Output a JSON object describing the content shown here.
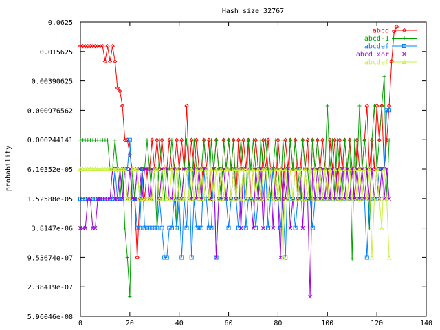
{
  "chart_data": {
    "type": "line",
    "title": "Hash size 32767",
    "xlabel": "",
    "ylabel": "probability",
    "y_scale": "log2",
    "xlim": [
      0,
      140
    ],
    "ylim": [
      5.96046e-08,
      0.0625
    ],
    "x_ticks": [
      0,
      20,
      40,
      60,
      80,
      100,
      120,
      140
    ],
    "y_tick_labels": [
      "0.0625",
      "0.015625",
      "0.00390625",
      "0.000976562",
      "0.000244141",
      "6.10352e-05",
      "1.52588e-05",
      "3.8147e-06",
      "9.53674e-07",
      "2.38419e-07",
      "5.96046e-08"
    ],
    "grid": false,
    "legend_position": "top-right",
    "series": [
      {
        "name": "abcd",
        "color": "#ff0000",
        "marker": "diamond",
        "x_start": 0,
        "x_step": 1,
        "values": [
          0.02,
          0.02,
          0.02,
          0.02,
          0.02,
          0.02,
          0.02,
          0.02,
          0.02,
          0.02,
          0.0098,
          0.02,
          0.0098,
          0.02,
          0.0098,
          0.0028,
          0.0024,
          0.0012,
          0.00024,
          0.00024,
          0.00012,
          6.1e-05,
          1.5e-05,
          9.5e-07,
          1.5e-05,
          6.1e-05,
          1.5e-05,
          6.1e-05,
          6.1e-05,
          0.00024,
          6.1e-05,
          0.00024,
          6.1e-05,
          0.00024,
          6.1e-05,
          6.1e-05,
          0.00024,
          6.1e-05,
          6.1e-05,
          0.00024,
          6.1e-05,
          0.00024,
          6.1e-05,
          0.0012,
          6.1e-05,
          0.00024,
          6.1e-05,
          0.00024,
          6.1e-05,
          1.5e-05,
          0.00024,
          6.1e-05,
          0.00024,
          1.5e-05,
          6.1e-05,
          0.00024,
          6.1e-05,
          1.5e-05,
          0.00024,
          6.1e-05,
          0.00024,
          6.1e-05,
          0.00024,
          1.5e-05,
          0.00024,
          6.1e-05,
          0.00024,
          6.1e-05,
          0.00024,
          1.5e-05,
          6.1e-05,
          0.00024,
          6.1e-05,
          1.5e-05,
          0.00024,
          6.1e-05,
          0.00024,
          6.1e-05,
          6.1e-05,
          1.5e-05,
          0.00024,
          6.1e-05,
          1.5e-05,
          0.00024,
          6.1e-05,
          0.00024,
          6.1e-05,
          0.00024,
          1.5e-05,
          6.1e-05,
          0.00024,
          6.1e-05,
          0.00024,
          1.5e-05,
          0.00024,
          6.1e-05,
          0.00024,
          6.1e-05,
          0.00024,
          6.1e-05,
          1.5e-05,
          0.00024,
          6.1e-05,
          0.00024,
          1.5e-05,
          0.00024,
          6.1e-05,
          0.00024,
          6.1e-05,
          0.00024,
          6.1e-05,
          1.5e-05,
          0.00024,
          6.1e-05,
          6.1e-05,
          0.00024,
          0.0012,
          6.1e-05,
          0.00024,
          6.1e-05,
          0.0012,
          0.00024,
          0.0012,
          6.1e-05,
          0.00024,
          0.0012,
          0.0098,
          0.04,
          0.05
        ]
      },
      {
        "name": "abcd-1",
        "color": "#00a000",
        "marker": "plus",
        "x_start": 0,
        "x_step": 1,
        "values": [
          0.00024,
          0.00024,
          0.00024,
          0.00024,
          0.00024,
          0.00024,
          0.00024,
          0.00024,
          0.00024,
          0.00024,
          0.00024,
          0.00024,
          6.1e-05,
          6.1e-05,
          0.00024,
          6.1e-05,
          1.5e-05,
          6.1e-05,
          3.8e-06,
          9.5e-07,
          1.5e-07,
          6.1e-05,
          1.5e-05,
          6.1e-05,
          1.5e-05,
          6.1e-05,
          6.1e-05,
          0.00024,
          6.1e-05,
          1.5e-05,
          6.1e-05,
          3.8e-06,
          0.00024,
          6.1e-05,
          1.5e-05,
          6.1e-05,
          6.1e-05,
          0.00024,
          6.1e-05,
          3.8e-06,
          6.1e-05,
          1.5e-05,
          6.1e-05,
          0.00024,
          6.1e-05,
          1.5e-05,
          0.00024,
          6.1e-05,
          1.5e-05,
          6.1e-05,
          0.00024,
          6.1e-05,
          1.5e-05,
          0.00024,
          6.1e-05,
          0.00024,
          6.1e-05,
          1.5e-05,
          0.00024,
          6.1e-05,
          0.00024,
          6.1e-05,
          0.00024,
          1.5e-05,
          6.1e-05,
          0.00024,
          6.1e-05,
          1.5e-05,
          0.00024,
          6.1e-05,
          0.00024,
          6.1e-05,
          1.5e-05,
          0.00024,
          6.1e-05,
          0.00024,
          6.1e-05,
          1.5e-05,
          6.1e-05,
          0.00024,
          6.1e-05,
          1.5e-05,
          0.00024,
          6.1e-05,
          1.5e-05,
          0.00024,
          6.1e-05,
          0.00024,
          6.1e-05,
          1.5e-05,
          0.00024,
          6.1e-05,
          6.1e-05,
          1.5e-05,
          0.00024,
          6.1e-05,
          0.00024,
          6.1e-05,
          1.5e-05,
          6.1e-05,
          0.0012,
          6.1e-05,
          0.00024,
          1.5e-05,
          0.00024,
          6.1e-05,
          1.5e-05,
          0.00024,
          6.1e-05,
          0.00024,
          9e-07,
          0.00024,
          6.1e-05,
          0.0012,
          6.1e-05,
          0.00024,
          6.1e-05,
          3.8e-06,
          0.00024,
          0.0012,
          6.1e-05,
          0.00024,
          0.0012,
          0.0048,
          1.5e-05,
          0.00024
        ]
      },
      {
        "name": "abcdef",
        "color": "#0080ff",
        "marker": "square",
        "x_start": 0,
        "x_step": 1,
        "values": [
          1.5e-05,
          1.5e-05,
          1.5e-05,
          1.5e-05,
          1.5e-05,
          1.5e-05,
          1.5e-05,
          1.5e-05,
          1.5e-05,
          1.5e-05,
          1.5e-05,
          1.5e-05,
          1.5e-05,
          1.5e-05,
          6.1e-05,
          1.5e-05,
          1.5e-05,
          1.5e-05,
          6.1e-05,
          6.1e-05,
          0.00024,
          1.5e-05,
          1.5e-05,
          3.8e-06,
          3.8e-06,
          6.1e-05,
          3.8e-06,
          3.8e-06,
          3.8e-06,
          3.8e-06,
          3.8e-06,
          3.8e-06,
          1.5e-05,
          3.8e-06,
          9.5e-07,
          9.5e-07,
          3.8e-06,
          3.8e-06,
          1.5e-05,
          3.8e-06,
          1.5e-05,
          9.5e-07,
          1.5e-05,
          3.8e-06,
          6.1e-05,
          9.5e-07,
          1.5e-05,
          3.8e-06,
          3.8e-06,
          3.8e-06,
          6.1e-05,
          1.5e-05,
          3.8e-06,
          3.8e-06,
          6.1e-05,
          9.5e-07,
          1.5e-05,
          6.1e-05,
          1.5e-05,
          1.5e-05,
          3.8e-06,
          1.5e-05,
          6.1e-05,
          1.5e-05,
          3.8e-06,
          1.5e-05,
          6.1e-05,
          3.8e-06,
          1.5e-05,
          1.5e-05,
          1.5e-05,
          3.8e-06,
          1.5e-05,
          6.1e-05,
          1.5e-05,
          6.1e-05,
          3.8e-06,
          1.5e-05,
          6.1e-05,
          1.5e-05,
          1.5e-05,
          3.8e-06,
          1.5e-05,
          9.5e-07,
          6.1e-05,
          1.5e-05,
          1.5e-05,
          3.8e-06,
          1.5e-05,
          6.1e-05,
          1.5e-05,
          1.5e-05,
          1.5e-05,
          1.5e-05,
          3.8e-06,
          1.5e-05,
          1.5e-05,
          6.1e-05,
          1.5e-05,
          1.5e-05,
          1.5e-05,
          1.5e-05,
          1.5e-05,
          1.5e-05,
          1.5e-05,
          1.5e-05,
          6.1e-05,
          1.5e-05,
          1.5e-05,
          1.5e-05,
          1.5e-05,
          1.5e-05,
          1.5e-05,
          1.5e-05,
          1.5e-05,
          1.5e-05,
          9.5e-07,
          1.5e-05,
          1.5e-05,
          1.5e-05,
          1.5e-05,
          6.1e-05,
          6.1e-05,
          6.1e-05,
          0.00098,
          0.00098
        ]
      },
      {
        "name": "abcd xor",
        "color": "#a000e0",
        "marker": "x",
        "x_start": 0,
        "x_step": 1,
        "values": [
          3.8e-06,
          3.8e-06,
          3.8e-06,
          1.5e-05,
          1.5e-05,
          3.8e-06,
          3.8e-06,
          1.5e-05,
          1.5e-05,
          1.5e-05,
          1.5e-05,
          1.5e-05,
          1.5e-05,
          6.1e-05,
          1.5e-05,
          1.5e-05,
          6.1e-05,
          1.5e-05,
          6.1e-05,
          1.5e-05,
          6.1e-05,
          1.5e-05,
          1.5e-05,
          6.1e-05,
          6.1e-05,
          1.5e-05,
          6.1e-05,
          6.1e-05,
          1.5e-05,
          6.1e-05,
          6.1e-05,
          6.1e-05,
          1.5e-05,
          6.1e-05,
          6.1e-05,
          6.1e-05,
          1.5e-05,
          1.5e-05,
          6.1e-05,
          6.1e-05,
          1.5e-05,
          1.5e-05,
          6.1e-05,
          6.1e-05,
          1.5e-05,
          1.5e-05,
          6.1e-05,
          1.5e-05,
          6.1e-05,
          1.5e-05,
          6.1e-05,
          6.1e-05,
          1.5e-05,
          1.5e-05,
          6.1e-05,
          9.5e-07,
          1.5e-05,
          6.1e-05,
          6.1e-05,
          1.5e-05,
          6.1e-05,
          1.5e-05,
          6.1e-05,
          1.5e-05,
          6.1e-05,
          3.8e-06,
          6.1e-05,
          1.5e-05,
          6.1e-05,
          1.5e-05,
          3.8e-06,
          6.1e-05,
          1.5e-05,
          6.1e-05,
          3.8e-06,
          6.1e-05,
          1.5e-05,
          6.1e-05,
          3.8e-06,
          6.1e-05,
          1.5e-05,
          9.5e-07,
          6.1e-05,
          1.5e-05,
          6.1e-05,
          3.8e-06,
          1.5e-05,
          6.1e-05,
          1.5e-05,
          6.1e-05,
          3.8e-06,
          6.1e-05,
          1.5e-05,
          1.5e-07,
          6.1e-05,
          1.5e-05,
          6.1e-05,
          1.5e-05,
          6.1e-05,
          1.5e-05,
          6.1e-05,
          1.5e-05,
          6.1e-05,
          1.5e-05,
          6.1e-05,
          1.5e-05,
          6.1e-05,
          1.5e-05,
          6.1e-05,
          1.5e-05,
          6.1e-05,
          1.5e-05,
          6.1e-05,
          1.5e-05,
          6.1e-05,
          1.5e-05,
          6.1e-05,
          1.5e-05,
          6.1e-05,
          1.5e-05,
          6.1e-05,
          1.5e-05,
          6.1e-05,
          1.5e-05,
          6.1e-05,
          1.5e-05
        ]
      },
      {
        "name": "abcdef",
        "color": "#c8f040",
        "marker": "triangle",
        "x_start": 0,
        "x_step": 1,
        "values": [
          6.1e-05,
          6.1e-05,
          6.1e-05,
          6.1e-05,
          6.1e-05,
          6.1e-05,
          6.1e-05,
          6.1e-05,
          6.1e-05,
          6.1e-05,
          6.1e-05,
          6.1e-05,
          6.1e-05,
          6.1e-05,
          6.1e-05,
          6.1e-05,
          6.1e-05,
          6.1e-05,
          6.1e-05,
          1.5e-05,
          1.5e-05,
          6.1e-05,
          6.1e-05,
          6.1e-05,
          1.5e-05,
          1.5e-05,
          1.5e-05,
          1.5e-05,
          1.5e-05,
          1.5e-05,
          6.1e-05,
          6.1e-05,
          1.5e-05,
          1.5e-05,
          6.1e-05,
          1.5e-05,
          1.5e-05,
          6.1e-05,
          1.5e-05,
          6.1e-05,
          1.5e-05,
          1.5e-05,
          1.5e-05,
          6.1e-05,
          1.5e-05,
          6.1e-05,
          1.5e-05,
          6.1e-05,
          1.5e-05,
          6.1e-05,
          1.5e-05,
          6.1e-05,
          1.5e-05,
          6.1e-05,
          1.5e-05,
          6.1e-05,
          1.5e-05,
          6.1e-05,
          1.5e-05,
          6.1e-05,
          6.1e-05,
          1.5e-05,
          6.1e-05,
          1.5e-05,
          6.1e-05,
          1.5e-05,
          6.1e-05,
          1.5e-05,
          6.1e-05,
          1.5e-05,
          6.1e-05,
          1.5e-05,
          6.1e-05,
          1.5e-05,
          6.1e-05,
          6.1e-05,
          1.5e-05,
          6.1e-05,
          1.5e-05,
          6.1e-05,
          1.5e-05,
          6.1e-05,
          9.5e-07,
          6.1e-05,
          1.5e-05,
          6.1e-05,
          1.5e-05,
          6.1e-05,
          1.5e-05,
          6.1e-05,
          1.5e-05,
          6.1e-05,
          1.5e-05,
          6.1e-05,
          1.5e-05,
          6.1e-05,
          1.5e-05,
          6.1e-05,
          1.5e-05,
          6.1e-05,
          1.5e-05,
          6.1e-05,
          1.5e-05,
          6.1e-05,
          1.5e-05,
          6.1e-05,
          1.5e-05,
          6.1e-05,
          1.5e-05,
          6.1e-05,
          1.5e-05,
          6.1e-05,
          1.5e-05,
          6.1e-05,
          1.5e-05,
          6.1e-05,
          1.5e-05,
          6.1e-05,
          9.5e-07,
          1.5e-05,
          6.1e-05,
          1.5e-05,
          3.8e-06,
          6.1e-05,
          1.5e-05,
          9.5e-07
        ]
      }
    ]
  }
}
